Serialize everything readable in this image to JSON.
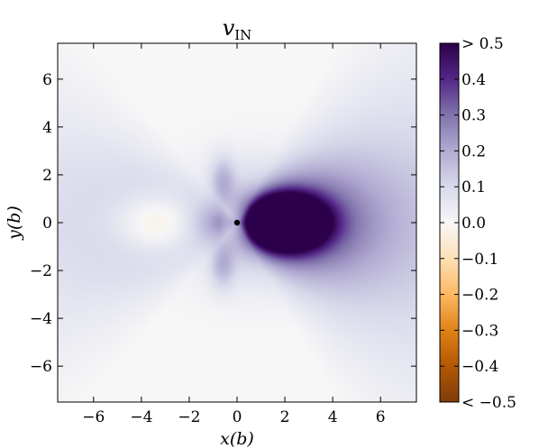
{
  "chart_data": {
    "type": "heatmap",
    "title_main": "v",
    "title_sub": "IN",
    "xlabel": "x(b)",
    "ylabel": "y(b)",
    "xlim": [
      -7.5,
      7.5
    ],
    "ylim": [
      -7.5,
      7.5
    ],
    "xticks": [
      -6,
      -4,
      -2,
      0,
      2,
      4,
      6
    ],
    "yticks": [
      -6,
      -4,
      -2,
      0,
      2,
      4,
      6
    ],
    "xtick_labels": [
      "−6",
      "−4",
      "−2",
      "0",
      "2",
      "4",
      "6"
    ],
    "ytick_labels": [
      "−6",
      "−4",
      "−2",
      "0",
      "2",
      "4",
      "6"
    ],
    "colorbar": {
      "range": [
        -0.5,
        0.5
      ],
      "ticks": [
        0.5,
        0.4,
        0.3,
        0.2,
        0.1,
        0.0,
        -0.1,
        -0.2,
        -0.3,
        -0.4,
        -0.5
      ],
      "tick_labels": [
        "> 0.5",
        "0.4",
        "0.3",
        "0.2",
        "0.1",
        "0.0",
        "−0.1",
        "−0.2",
        "−0.3",
        "−0.4",
        "< −0.5"
      ],
      "colors": {
        "max": "#2d004b",
        "p04": "#542788",
        "p03": "#8073ac",
        "p02": "#b2abd2",
        "p01": "#d8daeb",
        "zero": "#f7f7f7",
        "m01": "#fee0b6",
        "m02": "#fdb863",
        "m03": "#e08214",
        "m04": "#b35806",
        "min": "#7f3b08"
      }
    },
    "marker": {
      "x": 0,
      "y": 0,
      "color": "#000000"
    },
    "features": [
      {
        "kind": "max",
        "x": 2.0,
        "y": 0.0,
        "value": 0.5
      },
      {
        "kind": "min",
        "x": -3.0,
        "y": 0.0,
        "value": -0.1
      }
    ],
    "grid": false
  }
}
